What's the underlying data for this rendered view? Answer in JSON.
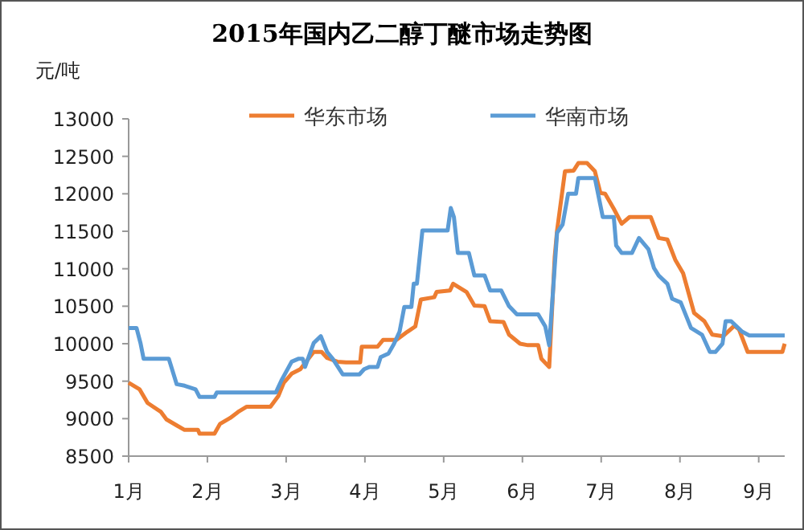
{
  "chart_data": {
    "type": "line",
    "title": "2015年国内乙二醇丁醚市场走势图",
    "ylabel": "元/吨",
    "legend": "top",
    "marker": "none",
    "line_style": "solid",
    "xlim": [
      1,
      9.33
    ],
    "xticks": [
      {
        "value": 1,
        "label": "1月"
      },
      {
        "value": 2,
        "label": "2月"
      },
      {
        "value": 3,
        "label": "3月"
      },
      {
        "value": 4,
        "label": "4月"
      },
      {
        "value": 5,
        "label": "5月"
      },
      {
        "value": 6,
        "label": "6月"
      },
      {
        "value": 7,
        "label": "7月"
      },
      {
        "value": 8,
        "label": "8月"
      },
      {
        "value": 9,
        "label": "9月"
      }
    ],
    "ylim": [
      8500,
      13000
    ],
    "yticks": [
      8500,
      9000,
      9500,
      10000,
      10500,
      11000,
      11500,
      12000,
      12500,
      13000
    ],
    "series": [
      {
        "name": "华东市场",
        "color": "#ed7d31",
        "x": [
          1.0,
          1.14,
          1.24,
          1.41,
          1.48,
          1.61,
          1.71,
          1.88,
          1.9,
          2.09,
          2.16,
          2.29,
          2.39,
          2.5,
          2.8,
          2.9,
          2.97,
          3.07,
          3.18,
          3.35,
          3.45,
          3.52,
          3.65,
          3.76,
          3.94,
          3.96,
          4.16,
          4.23,
          4.4,
          4.54,
          4.64,
          4.71,
          4.88,
          4.91,
          5.08,
          5.12,
          5.29,
          5.39,
          5.52,
          5.59,
          5.76,
          5.83,
          5.97,
          6.07,
          6.2,
          6.24,
          6.34,
          6.41,
          6.44,
          6.54,
          6.65,
          6.71,
          6.82,
          6.92,
          6.99,
          7.05,
          7.16,
          7.26,
          7.36,
          7.63,
          7.73,
          7.84,
          7.94,
          8.04,
          8.18,
          8.31,
          8.41,
          8.55,
          8.69,
          8.75,
          8.86,
          9.3,
          9.33
        ],
        "values": [
          9480,
          9390,
          9210,
          9090,
          8990,
          8910,
          8850,
          8850,
          8800,
          8800,
          8930,
          9010,
          9090,
          9160,
          9160,
          9300,
          9480,
          9600,
          9660,
          9890,
          9890,
          9810,
          9760,
          9750,
          9750,
          9960,
          9960,
          10050,
          10050,
          10160,
          10230,
          10590,
          10620,
          10690,
          10710,
          10800,
          10690,
          10510,
          10500,
          10300,
          10290,
          10120,
          10000,
          9980,
          9980,
          9800,
          9690,
          11160,
          11510,
          12300,
          12310,
          12410,
          12410,
          12300,
          12010,
          12000,
          11800,
          11600,
          11690,
          11690,
          11410,
          11390,
          11120,
          10940,
          10410,
          10300,
          10120,
          10100,
          10240,
          10190,
          9890,
          9890,
          10000
        ]
      },
      {
        "name": "华南市场",
        "color": "#5b9bd5",
        "x": [
          1.0,
          1.1,
          1.15,
          1.19,
          1.51,
          1.61,
          1.71,
          1.85,
          1.9,
          2.09,
          2.12,
          2.87,
          2.94,
          3.07,
          3.16,
          3.21,
          3.24,
          3.35,
          3.44,
          3.52,
          3.59,
          3.72,
          3.93,
          3.99,
          4.06,
          4.16,
          4.2,
          4.3,
          4.37,
          4.44,
          4.5,
          4.59,
          4.62,
          4.66,
          4.73,
          5.05,
          5.09,
          5.13,
          5.18,
          5.32,
          5.39,
          5.52,
          5.59,
          5.73,
          5.83,
          5.93,
          6.2,
          6.29,
          6.34,
          6.44,
          6.51,
          6.58,
          6.68,
          6.71,
          6.92,
          7.02,
          7.16,
          7.19,
          7.26,
          7.39,
          7.48,
          7.6,
          7.67,
          7.73,
          7.84,
          7.9,
          8.01,
          8.14,
          8.28,
          8.38,
          8.45,
          8.54,
          8.58,
          8.65,
          8.79,
          8.88,
          9.33
        ],
        "values": [
          10210,
          10210,
          10010,
          9800,
          9800,
          9460,
          9440,
          9390,
          9290,
          9290,
          9350,
          9350,
          9510,
          9760,
          9800,
          9800,
          9690,
          10010,
          10100,
          9890,
          9800,
          9590,
          9590,
          9660,
          9690,
          9690,
          9820,
          9870,
          10000,
          10160,
          10490,
          10490,
          10800,
          10800,
          11510,
          11510,
          11810,
          11690,
          11210,
          11210,
          10910,
          10910,
          10710,
          10710,
          10500,
          10390,
          10390,
          10230,
          9980,
          11480,
          11590,
          12000,
          12000,
          12210,
          12210,
          11690,
          11690,
          11310,
          11210,
          11210,
          11410,
          11260,
          11010,
          10910,
          10800,
          10600,
          10550,
          10210,
          10120,
          9890,
          9890,
          10000,
          10300,
          10300,
          10160,
          10110,
          10110
        ]
      }
    ]
  }
}
